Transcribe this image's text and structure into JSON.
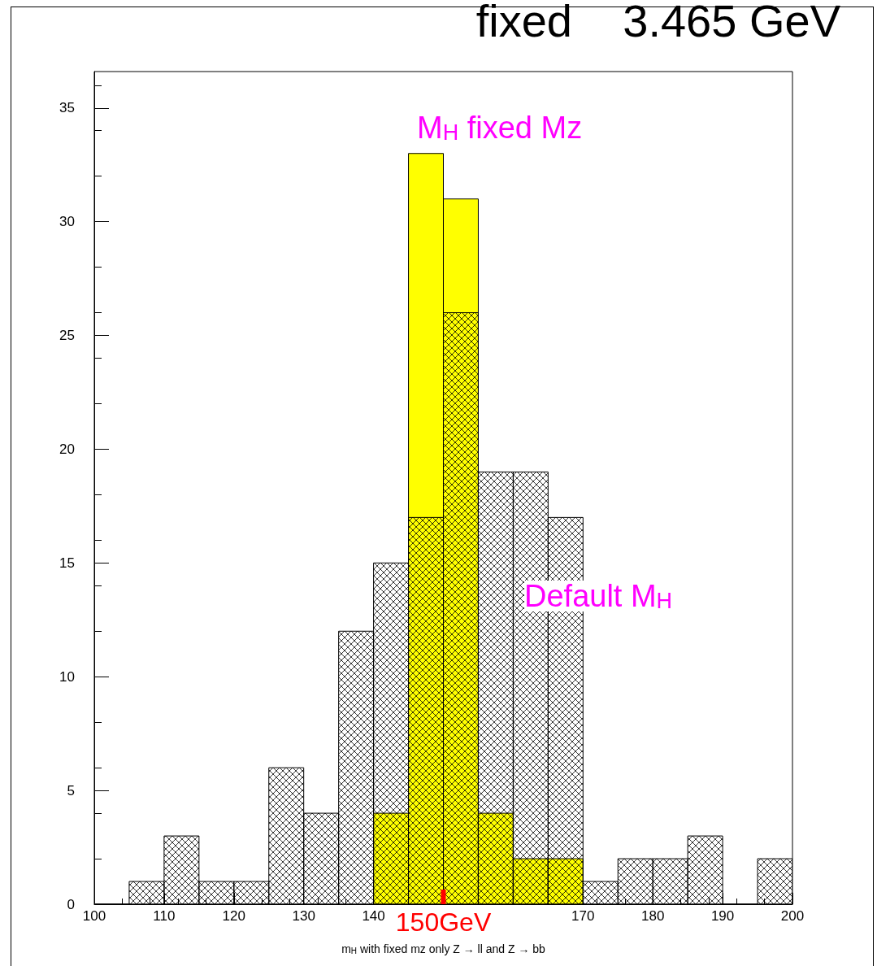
{
  "chart_data": {
    "type": "histogram",
    "title": "fixed    3.465 GeV",
    "xlabel": "m$_{H}$ with fixed mz only Z → ll and Z → bb",
    "bins": [
      100,
      105,
      110,
      115,
      120,
      125,
      130,
      135,
      140,
      145,
      150,
      155,
      160,
      165,
      170,
      175,
      180,
      185,
      190,
      195,
      200
    ],
    "series": [
      {
        "color": "#ffff00",
        "values": [
          null,
          null,
          null,
          null,
          null,
          null,
          null,
          null,
          4,
          33,
          31,
          4,
          2,
          2,
          null,
          null,
          null,
          null,
          null,
          null
        ]
      },
      {
        "color": "#000000",
        "values": [
          0,
          1,
          3,
          1,
          1,
          6,
          4,
          12,
          15,
          17,
          26,
          19,
          19,
          17,
          1,
          2,
          2,
          3,
          0,
          2
        ]
      }
    ],
    "annotations": [
      "M$_{H}$ fixed Mz",
      "Default M$_{H}$"
    ],
    "ref_lines": [
      {
        "axis": "x",
        "value": 150,
        "label": "150GeV",
        "color": "#ff0000"
      }
    ],
    "xlim": [
      100,
      200
    ],
    "xticks": [
      100,
      110,
      120,
      130,
      140,
      170,
      180,
      190,
      200
    ],
    "ylim": [
      0,
      36.6
    ],
    "yticks": [
      0,
      5,
      10,
      15,
      20,
      25,
      30,
      35
    ],
    "grid": false
  }
}
